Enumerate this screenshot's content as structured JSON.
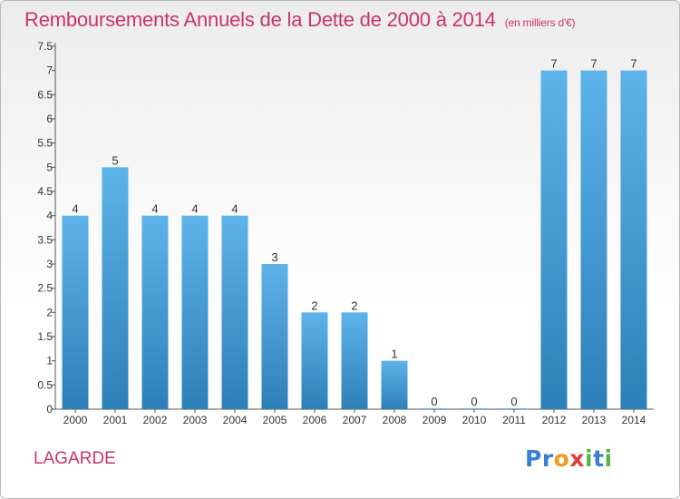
{
  "title": "Remboursements Annuels de la Dette de 2000 à 2014",
  "subtitle": "(en milliers d'€)",
  "commune": "LAGARDE",
  "logo": {
    "letters": [
      "P",
      "r",
      "o",
      "x",
      "i",
      "t",
      "i"
    ],
    "colors": [
      "#3a7fd5",
      "#3a7fd5",
      "#f39a1e",
      "#e33b3b",
      "#54b848",
      "#3a7fd5",
      "#54b848"
    ]
  },
  "colors": {
    "bar_top": "#5eb3ea",
    "bar_bottom": "#2d7fb8",
    "axis": "#555555",
    "label": "#333333"
  },
  "chart_data": {
    "type": "bar",
    "categories": [
      "2000",
      "2001",
      "2002",
      "2003",
      "2004",
      "2005",
      "2006",
      "2007",
      "2008",
      "2009",
      "2010",
      "2011",
      "2012",
      "2013",
      "2014"
    ],
    "values": [
      4,
      5,
      4,
      4,
      4,
      3,
      2,
      2,
      1,
      0,
      0,
      0,
      7,
      7,
      7
    ],
    "data_labels": [
      "4",
      "5",
      "4",
      "4",
      "4",
      "3",
      "2",
      "2",
      "1",
      "0",
      "0",
      "0",
      "7",
      "7",
      "7"
    ],
    "yticks": [
      0,
      0.5,
      1,
      1.5,
      2,
      2.5,
      3,
      3.5,
      4,
      4.5,
      5,
      5.5,
      6,
      6.5,
      7,
      7.5
    ],
    "ytick_labels": [
      "0",
      "0.5",
      "1",
      "1.5",
      "2",
      "2.5",
      "3",
      "3.5",
      "4",
      "4.5",
      "5",
      "5.5",
      "6",
      "6.5",
      "7",
      "7.5"
    ],
    "ylim": [
      0,
      7.5
    ],
    "xlabel": "",
    "ylabel": "",
    "grid": false
  }
}
